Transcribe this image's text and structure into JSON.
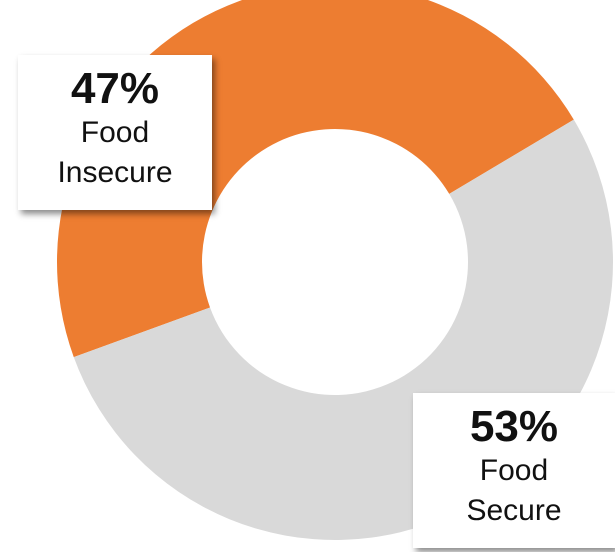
{
  "chart_data": {
    "type": "pie",
    "categories": [
      "Food Insecure",
      "Food Secure"
    ],
    "values": [
      47,
      53
    ],
    "colors": [
      "#ED7D31",
      "#D9D9D9"
    ],
    "style": "donut",
    "labels": [
      {
        "percent": "47%",
        "line1": "Food",
        "line2": "Insecure"
      },
      {
        "percent": "53%",
        "line1": "Food",
        "line2": "Secure"
      }
    ]
  }
}
